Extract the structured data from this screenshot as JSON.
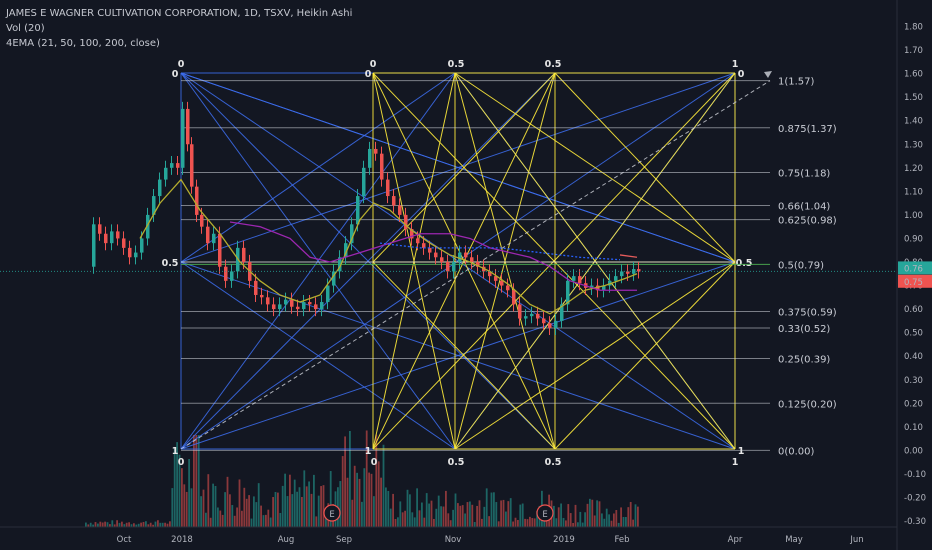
{
  "legend": {
    "title": "JAMES E WAGNER CULTIVATION CORPORATION, 1D, TSXV, Heikin Ashi",
    "vol": "Vol (20)",
    "ema": "4EMA (21, 50, 100, 200, close)"
  },
  "colors": {
    "background": "#131722",
    "up": "#26a69a",
    "down": "#ef5350",
    "gann_yellow": "#ffeb3b",
    "gann_blue": "#3d6ef0",
    "gann_grid": "#5b6fd6",
    "fan_lines": "#d1d4dc",
    "ema21": "#b5ad2e",
    "ema50": "#9c27b0",
    "ema100": "#2962ff",
    "ema200": "#e65c5c",
    "last_price_tag": "#26a69a",
    "prev_price_tag": "#ef5350"
  },
  "chart_data": {
    "type": "candlestick",
    "y_axis": {
      "ticks": [
        "1.80",
        "1.70",
        "1.60",
        "1.50",
        "1.40",
        "1.30",
        "1.20",
        "1.10",
        "1.00",
        "0.90",
        "0.80",
        "0.70",
        "0.60",
        "0.50",
        "0.40",
        "0.30",
        "0.20",
        "0.10",
        "0.00",
        "-0.10",
        "-0.20",
        "-0.30"
      ],
      "range": [
        -0.33,
        1.87
      ]
    },
    "x_axis": {
      "labels": [
        "Oct",
        "2018",
        "Aug",
        "Sep",
        "Nov",
        "2019",
        "Feb",
        "Apr",
        "May",
        "Jun"
      ]
    },
    "price_tags": [
      {
        "label": "0.76",
        "value": 0.76,
        "color": "up"
      },
      {
        "label": "0.75",
        "value": 0.75,
        "color": "down"
      }
    ],
    "close_series_approx": [
      {
        "x": "Sep-2017",
        "y": 0.8
      },
      {
        "x": "Oct-2017",
        "y": 0.98
      },
      {
        "x": "Nov-2017",
        "y": 0.9
      },
      {
        "x": "Dec-2017",
        "y": 1.22
      },
      {
        "x": "Jan-2018",
        "y": 1.5
      },
      {
        "x": "Feb-2018",
        "y": 0.95
      },
      {
        "x": "Apr-2018",
        "y": 0.7
      },
      {
        "x": "Jul-2018",
        "y": 0.63
      },
      {
        "x": "Aug-2018",
        "y": 0.62
      },
      {
        "x": "Sep-2018",
        "y": 0.85
      },
      {
        "x": "Sep-2018b",
        "y": 1.28
      },
      {
        "x": "Oct-2018",
        "y": 0.92
      },
      {
        "x": "Nov-2018",
        "y": 0.8
      },
      {
        "x": "Dec-2018",
        "y": 0.55
      },
      {
        "x": "Jan-2019",
        "y": 0.73
      },
      {
        "x": "Feb-2019",
        "y": 0.76
      }
    ],
    "fib_fan_levels": [
      {
        "label": "1(1.57)",
        "value": 1.57
      },
      {
        "label": "0.875(1.37)",
        "value": 1.37
      },
      {
        "label": "0.75(1.18)",
        "value": 1.18
      },
      {
        "label": "0.66(1.04)",
        "value": 1.04
      },
      {
        "label": "0.625(0.98)",
        "value": 0.98
      },
      {
        "label": "0.5(0.79)",
        "value": 0.79,
        "highlight": true
      },
      {
        "label": "0.375(0.59)",
        "value": 0.59
      },
      {
        "label": "0.33(0.52)",
        "value": 0.52
      },
      {
        "label": "0.25(0.39)",
        "value": 0.39
      },
      {
        "label": "0.125(0.20)",
        "value": 0.2
      },
      {
        "label": "0(0.00)",
        "value": 0.0
      }
    ],
    "gann_square_blue": {
      "corner_labels_top": [
        "0",
        "0"
      ],
      "corner_labels_mid": [
        "0.5"
      ],
      "corner_labels_bottom": [
        "1",
        "0"
      ]
    },
    "gann_square_yellow": {
      "top_labels": [
        "0",
        "0",
        "0.5",
        "0.5",
        "1",
        "0"
      ],
      "mid_labels": [
        "0.5"
      ],
      "bottom_labels": [
        "1",
        "0",
        "0.5",
        "0.5",
        "1",
        "1"
      ]
    },
    "event_markers": [
      "E",
      "E"
    ]
  }
}
